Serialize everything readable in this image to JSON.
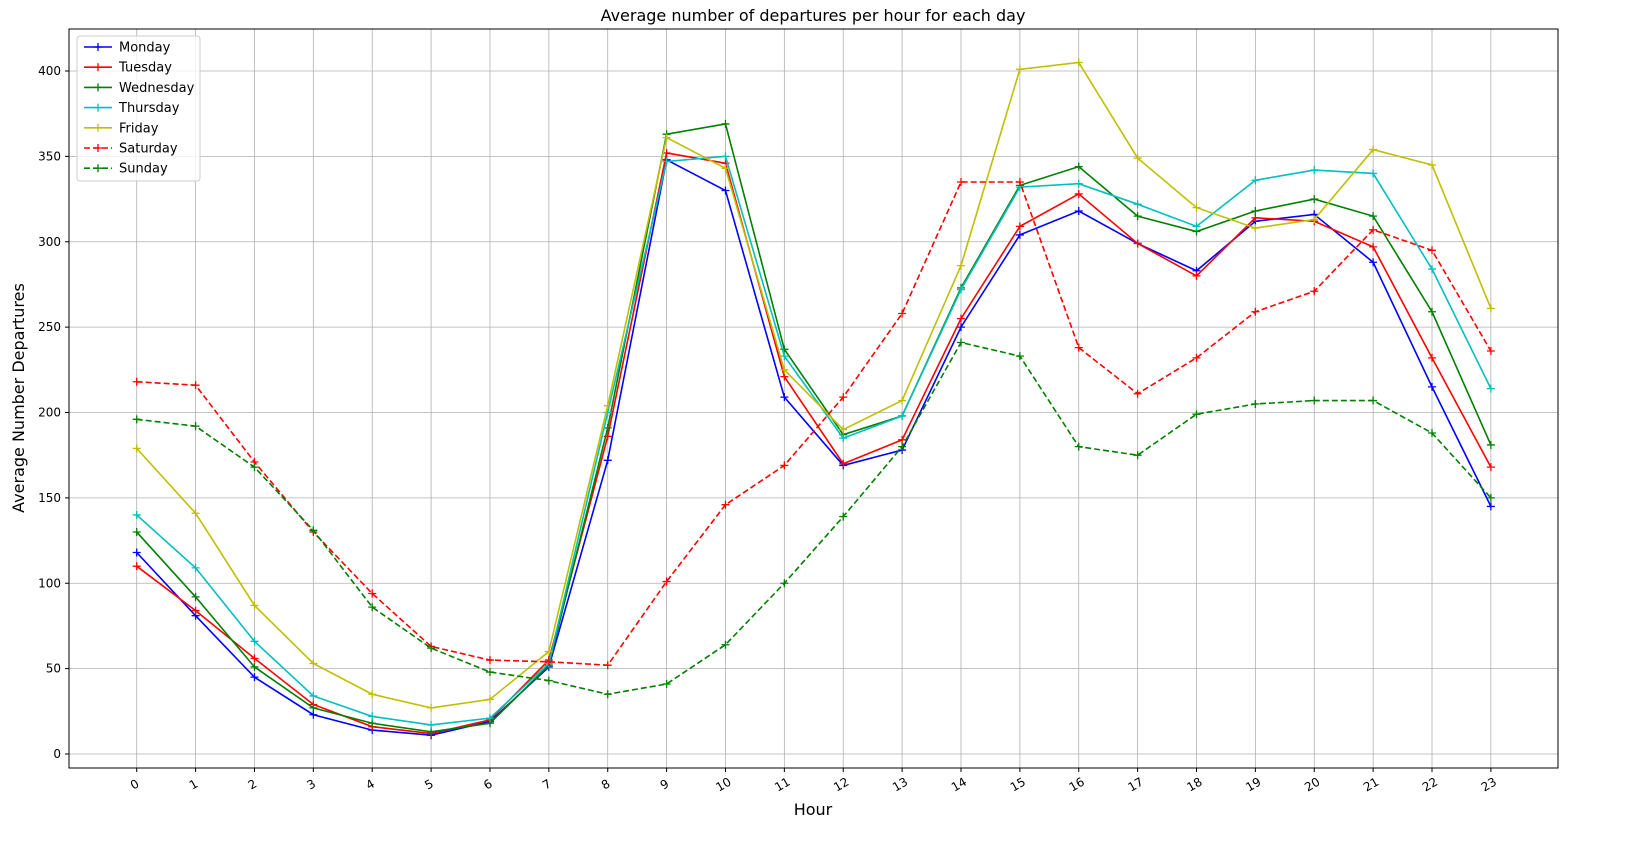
{
  "chart_data": {
    "type": "line",
    "title": "Average number of departures per hour for each day",
    "xlabel": "Hour",
    "ylabel": "Average Number Departures",
    "x": [
      0,
      1,
      2,
      3,
      4,
      5,
      6,
      7,
      8,
      9,
      10,
      11,
      12,
      13,
      14,
      15,
      16,
      17,
      18,
      19,
      20,
      21,
      22,
      23
    ],
    "xticks": [
      "0",
      "1",
      "2",
      "3",
      "4",
      "5",
      "6",
      "7",
      "8",
      "9",
      "10",
      "11",
      "12",
      "13",
      "14",
      "15",
      "16",
      "17",
      "18",
      "19",
      "20",
      "21",
      "22",
      "23"
    ],
    "yticks": [
      0,
      50,
      100,
      150,
      200,
      250,
      300,
      350,
      400
    ],
    "xlim": [
      -1.15,
      24.14
    ],
    "ylim": [
      -8.2,
      424.6
    ],
    "grid": true,
    "legend_position": "top-left",
    "marker": "+",
    "series": [
      {
        "name": "Monday",
        "color": "#0000ff",
        "dash": "solid",
        "values": [
          118,
          81,
          45,
          23,
          14,
          11,
          19,
          51,
          172,
          348,
          330,
          209,
          169,
          178,
          250,
          304,
          318,
          299,
          283,
          312,
          316,
          288,
          215,
          145
        ]
      },
      {
        "name": "Tuesday",
        "color": "#ff0000",
        "dash": "solid",
        "values": [
          110,
          84,
          56,
          29,
          16,
          12,
          20,
          55,
          186,
          352,
          346,
          221,
          170,
          184,
          255,
          309,
          328,
          299,
          280,
          314,
          312,
          297,
          232,
          168
        ]
      },
      {
        "name": "Wednesday",
        "color": "#008000",
        "dash": "solid",
        "values": [
          130,
          92,
          51,
          27,
          18,
          13,
          18,
          52,
          191,
          363,
          369,
          237,
          187,
          198,
          273,
          333,
          344,
          315,
          306,
          318,
          325,
          315,
          259,
          181
        ]
      },
      {
        "name": "Thursday",
        "color": "#00bfbf",
        "dash": "solid",
        "values": [
          140,
          109,
          66,
          34,
          22,
          17,
          21,
          53,
          200,
          347,
          350,
          233,
          185,
          198,
          272,
          332,
          334,
          322,
          309,
          336,
          342,
          340,
          284,
          214
        ]
      },
      {
        "name": "Friday",
        "color": "#bfbf00",
        "dash": "solid",
        "values": [
          179,
          141,
          87,
          53,
          35,
          27,
          32,
          60,
          204,
          361,
          343,
          225,
          190,
          207,
          286,
          401,
          405,
          349,
          320,
          308,
          313,
          354,
          345,
          261
        ]
      },
      {
        "name": "Saturday",
        "color": "#ff0000",
        "dash": "dashed",
        "values": [
          218,
          216,
          171,
          130,
          94,
          63,
          55,
          54,
          52,
          101,
          146,
          169,
          209,
          258,
          335,
          335,
          238,
          211,
          232,
          259,
          271,
          307,
          295,
          236
        ]
      },
      {
        "name": "Sunday",
        "color": "#008000",
        "dash": "dashed",
        "values": [
          196,
          192,
          168,
          131,
          86,
          62,
          48,
          43,
          35,
          41,
          64,
          100,
          139,
          180,
          241,
          233,
          180,
          175,
          199,
          205,
          207,
          207,
          188,
          150
        ]
      }
    ]
  }
}
